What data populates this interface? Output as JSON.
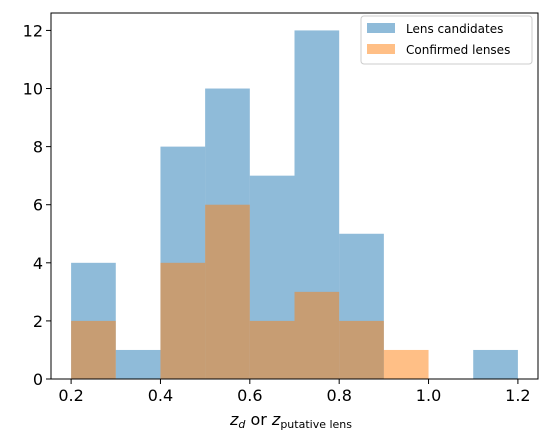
{
  "chart_data": {
    "type": "bar",
    "title": "",
    "xlabel": {
      "z_d": "z",
      "z_d_sub": "d",
      "or": " or ",
      "z_p": "z",
      "z_p_sub": "putative lens"
    },
    "ylabel": "",
    "xlim": [
      0.155,
      1.245
    ],
    "ylim": [
      0,
      12.6
    ],
    "xticks": [
      "0.2",
      "0.4",
      "0.6",
      "0.8",
      "1.0",
      "1.2"
    ],
    "yticks": [
      "0",
      "2",
      "4",
      "6",
      "8",
      "10",
      "12"
    ],
    "bin_edges": [
      0.2,
      0.3,
      0.4,
      0.5,
      0.6,
      0.7,
      0.8,
      0.9,
      1.0,
      1.1,
      1.2
    ],
    "legend_position": "top-right",
    "series": [
      {
        "name": "Lens candidates",
        "color": "#1f77b4",
        "alpha": 0.5,
        "values": [
          4,
          1,
          8,
          10,
          7,
          12,
          5,
          0,
          0,
          1
        ]
      },
      {
        "name": "Confirmed lenses",
        "color": "#ff7f0e",
        "alpha": 0.5,
        "values": [
          2,
          0,
          4,
          6,
          2,
          3,
          2,
          1,
          0,
          0
        ]
      }
    ]
  }
}
